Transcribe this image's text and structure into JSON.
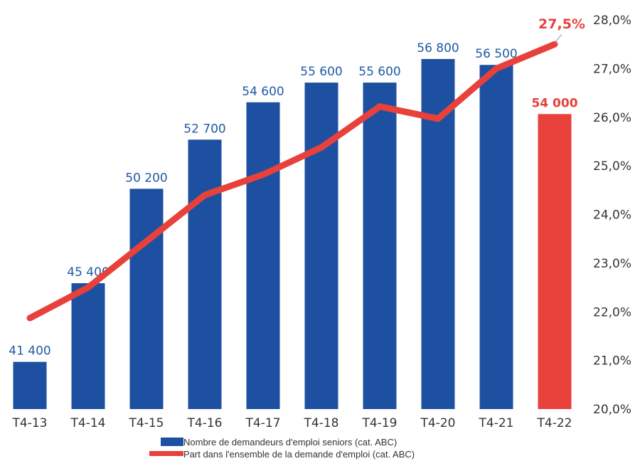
{
  "chart_data": {
    "type": "bar",
    "categories": [
      "T4-13",
      "T4-14",
      "T4-15",
      "T4-16",
      "T4-17",
      "T4-18",
      "T4-19",
      "T4-20",
      "T4-21",
      "T4-22"
    ],
    "series": [
      {
        "name": "Nombre de demandeurs d'emploi seniors (cat. ABC)",
        "type": "bar",
        "axis": "left",
        "values": [
          41400,
          45400,
          50200,
          52700,
          54600,
          55600,
          55600,
          56800,
          56500,
          54000
        ],
        "labels": [
          "41 400",
          "45 400",
          "50 200",
          "52 700",
          "54 600",
          "55 600",
          "55 600",
          "56 800",
          "56 500",
          "54 000"
        ],
        "color": "#1d50a0",
        "highlight_color": "#e8413c",
        "highlight_index": 9
      },
      {
        "name": "Part dans l'ensemble de la demande d'emploi (cat. ABC)",
        "type": "line",
        "axis": "right",
        "values": [
          21.87,
          22.5,
          23.45,
          24.4,
          24.82,
          25.38,
          26.22,
          25.97,
          27.0,
          27.5
        ],
        "color": "#e8413c",
        "last_label": "27,5%"
      }
    ],
    "y_left": {
      "min": 39000,
      "max": 59800
    },
    "y_right": {
      "min": 20.0,
      "max": 28.0,
      "ticks": [
        20,
        21,
        22,
        23,
        24,
        25,
        26,
        27,
        28
      ],
      "tick_labels": [
        "20,0%",
        "21,0%",
        "22,0%",
        "23,0%",
        "24,0%",
        "25,0%",
        "26,0%",
        "27,0%",
        "28,0%"
      ]
    },
    "grid": false,
    "legend_position": "bottom"
  }
}
